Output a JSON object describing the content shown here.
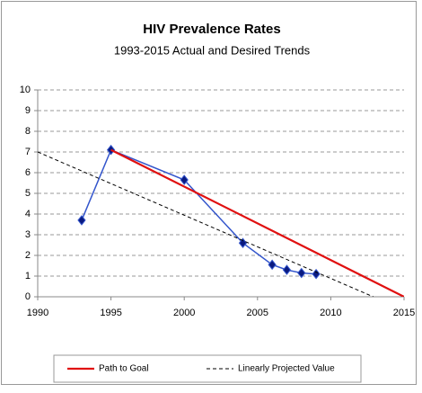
{
  "chart_data": {
    "type": "line",
    "title": "HIV Prevalence Rates",
    "subtitle": "1993-2015 Actual and Desired Trends",
    "xlim": [
      1990,
      2015
    ],
    "xticks": [
      1990,
      1995,
      2000,
      2005,
      2010,
      2015
    ],
    "ylim": [
      0,
      10
    ],
    "yticks": [
      0,
      1,
      2,
      3,
      4,
      5,
      6,
      7,
      8,
      9,
      10
    ],
    "grid": true,
    "legend": "bottom",
    "series": [
      {
        "color": "#3355cc",
        "marker": "diamond",
        "x": [
          1993,
          1995,
          2000,
          2004,
          2006,
          2007,
          2008,
          2009
        ],
        "values": [
          3.7,
          7.1,
          5.65,
          2.6,
          1.55,
          1.3,
          1.15,
          1.1
        ]
      },
      {
        "name": "Path to Goal",
        "color": "#e01010",
        "x": [
          1995,
          2015
        ],
        "values": [
          7.1,
          0
        ]
      },
      {
        "name": "Linearly Projected Value",
        "color": "#000000",
        "dashed": true,
        "x": [
          1990,
          2012.9
        ],
        "values": [
          7,
          0
        ]
      }
    ]
  }
}
